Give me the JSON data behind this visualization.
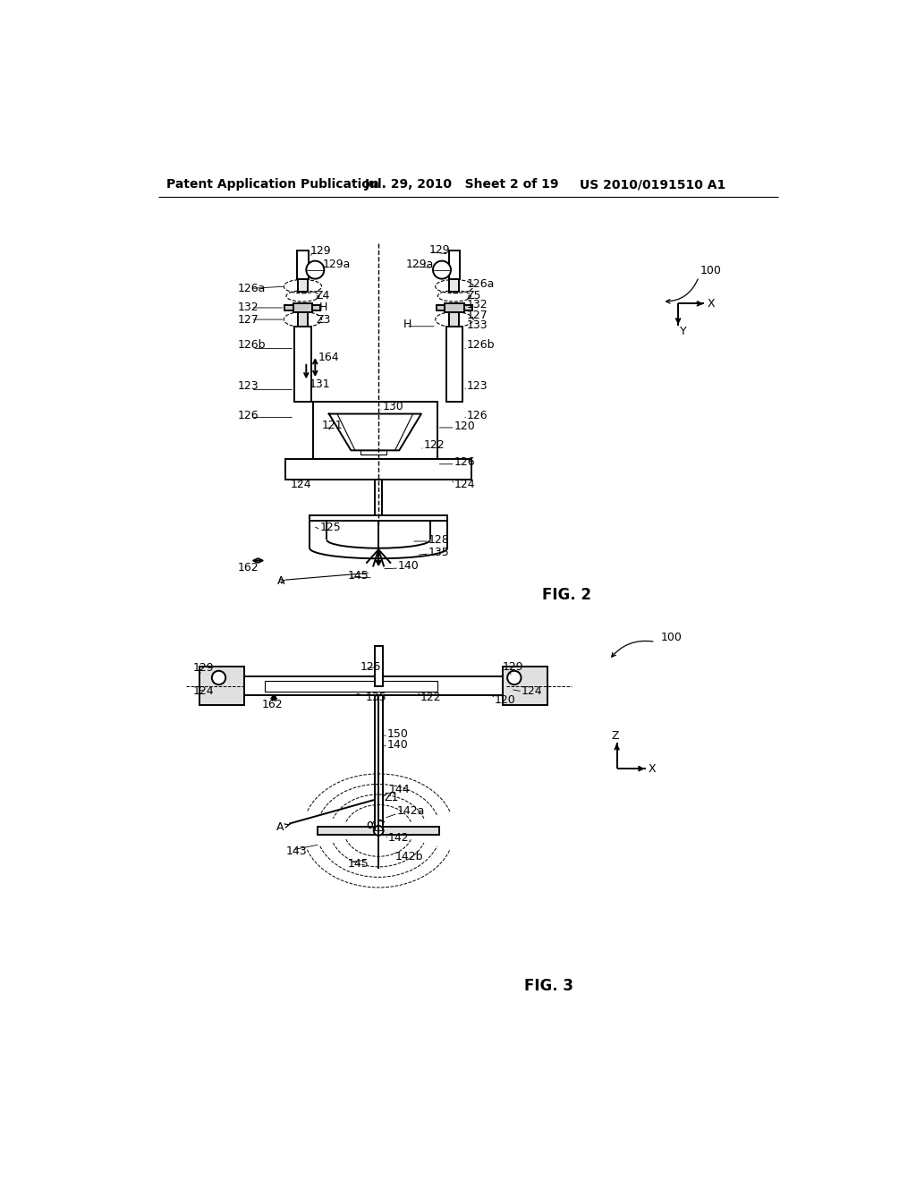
{
  "bg_color": "#ffffff",
  "header_text": "Patent Application Publication",
  "header_date": "Jul. 29, 2010   Sheet 2 of 19",
  "header_patent": "US 2010/0191510 A1",
  "fig2_label": "FIG. 2",
  "fig3_label": "FIG. 3",
  "lc": "#000000",
  "lw": 1.4,
  "tlw": 0.8,
  "fs": 9,
  "hfs": 10
}
